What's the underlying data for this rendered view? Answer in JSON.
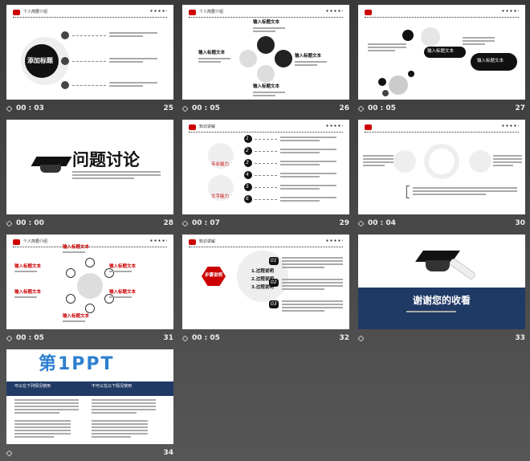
{
  "slides": [
    {
      "number": "25",
      "timing": "00 : 03",
      "header": "个人简要介绍",
      "title": "添加标题"
    },
    {
      "number": "26",
      "timing": "00 : 05",
      "header": "个人简要介绍",
      "labels": [
        "输入标题文本",
        "输入标题文本",
        "输入标题文本",
        "输入标题文本"
      ]
    },
    {
      "number": "27",
      "timing": "00 : 05",
      "labels": [
        "输入标题文本",
        "输入标题文本"
      ]
    },
    {
      "number": "28",
      "timing": "00 : 00",
      "title": "问题讨论"
    },
    {
      "number": "29",
      "timing": "00 : 07",
      "header": "知识讲解",
      "labels": [
        "专业能力",
        "文字能力"
      ],
      "steps": [
        "1",
        "2",
        "3",
        "4",
        "5",
        "6"
      ]
    },
    {
      "number": "30",
      "timing": "00 : 04"
    },
    {
      "number": "31",
      "timing": "00 : 05",
      "header": "个人简要介绍",
      "labels": [
        "输入标题文本",
        "输入标题文本",
        "输入标题文本",
        "输入标题文本",
        "输入标题文本",
        "输入标题文本"
      ]
    },
    {
      "number": "32",
      "timing": "00 : 05",
      "header": "知识讲解",
      "title": "步骤说明",
      "labels": [
        "1.过程说明",
        "2.过程说明",
        "3.过程说明"
      ],
      "steps": [
        "01",
        "02",
        "03"
      ]
    },
    {
      "number": "33",
      "title": "谢谢您的收看"
    },
    {
      "number": "34",
      "title": "第1PPT",
      "labels": [
        "可以在下列情况使用",
        "不可以在以下情况使用"
      ]
    }
  ]
}
